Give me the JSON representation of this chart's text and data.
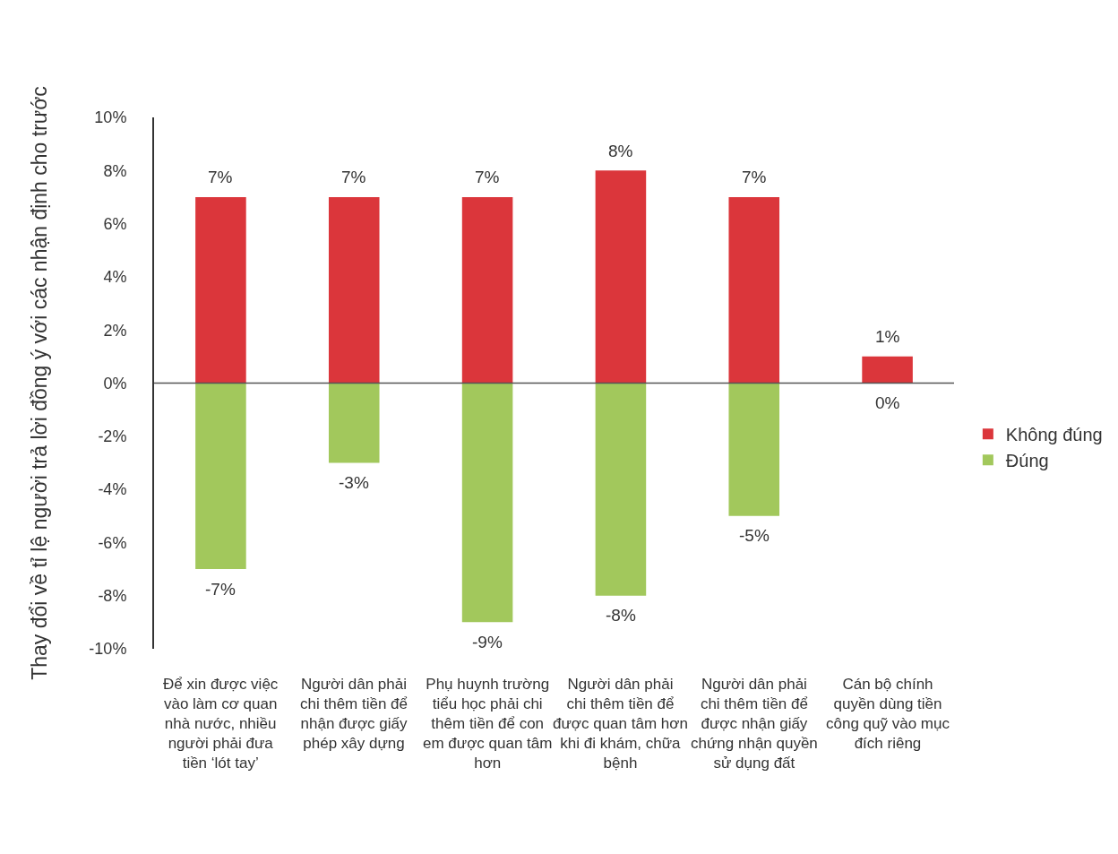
{
  "chart_data": {
    "type": "bar",
    "stacked": true,
    "ylabel": "Thay đổi về tỉ lệ người trả lời đồng ý với các nhận định cho trước",
    "categories": [
      "Để xin được việc vào làm cơ quan nhà nước, nhiều người phải đưa tiền ‘lót tay’",
      "Người dân phải chi thêm tiền để nhận được giấy phép xây dựng",
      "Phụ huynh trường tiểu học phải chi thêm tiền để con em được quan tâm hơn",
      "Người dân phải chi thêm tiền để được quan tâm hơn khi đi khám, chữa bệnh",
      "Người dân phải chi thêm tiền để được nhận giấy chứng nhận quyền sử dụng đất",
      "Cán bộ chính quyền dùng tiền công quỹ vào mục đích riêng"
    ],
    "series": [
      {
        "name": "Không đúng",
        "color": "#db363b",
        "values": [
          7,
          7,
          7,
          8,
          7,
          1
        ],
        "value_labels": [
          "7%",
          "7%",
          "7%",
          "8%",
          "7%",
          "1%"
        ]
      },
      {
        "name": "Đúng",
        "color": "#a2c85c",
        "values": [
          -7,
          -3,
          -9,
          -8,
          -5,
          0
        ],
        "value_labels": [
          "-7%",
          "-3%",
          "-9%",
          "-8%",
          "-5%",
          "0%"
        ]
      }
    ],
    "ylim": [
      -10,
      10
    ],
    "yticks": [
      {
        "value": -10,
        "label": "-10%"
      },
      {
        "value": -8,
        "label": "-8%"
      },
      {
        "value": -6,
        "label": "-6%"
      },
      {
        "value": -4,
        "label": "-4%"
      },
      {
        "value": -2,
        "label": "-2%"
      },
      {
        "value": 0,
        "label": "0%"
      },
      {
        "value": 2,
        "label": "2%"
      },
      {
        "value": 4,
        "label": "4%"
      },
      {
        "value": 6,
        "label": "6%"
      },
      {
        "value": 8,
        "label": "8%"
      },
      {
        "value": 10,
        "label": "10%"
      }
    ],
    "ref_lines": [
      {
        "axis": "y",
        "value": 0,
        "color": "#555555"
      }
    ],
    "grid": false,
    "legend": "right"
  }
}
